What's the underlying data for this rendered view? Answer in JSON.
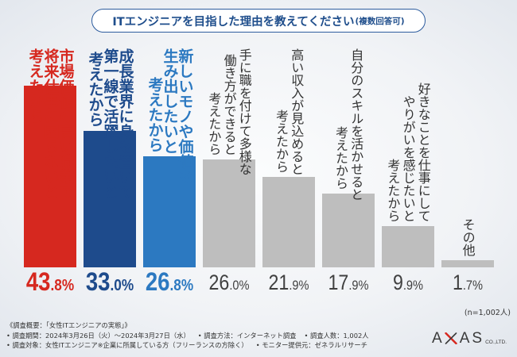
{
  "chart_data": {
    "type": "bar",
    "title": "ITエンジニアを目指した理由を教えてください",
    "subtitle": "(複数回答可)",
    "categories": [
      "市場価値の高い職業で\n将来仕事に困らないと\n考えたから",
      "成長業界に身を置いて\n第一線で活躍したいと\n考えたから",
      "新しいモノや価値を\n生み出したいと\n考えたから",
      "手に職を付けて多様な\n働き方ができると\n考えたから",
      "高い収入が見込めると\n考えたから",
      "自分のスキルを活かせると\n考えたから",
      "好きなことを仕事にして\nやりがいを感じたいと\n考えたから",
      "その他"
    ],
    "values": [
      43.8,
      33.0,
      26.8,
      26.0,
      21.9,
      17.9,
      9.9,
      1.7
    ],
    "data_labels": [
      "43.8%",
      "33.0%",
      "26.8%",
      "26.0%",
      "21.9%",
      "17.9%",
      "9.9%",
      "1.7%"
    ],
    "highlighted": [
      true,
      true,
      true,
      false,
      false,
      false,
      false,
      false
    ],
    "bar_colors": [
      "#d6281f",
      "#1e4b8c",
      "#2c79c1",
      "#bebebe",
      "#bebebe",
      "#bebebe",
      "#bebebe",
      "#bebebe"
    ],
    "label_colors": [
      "#ffffff",
      "#ffffff",
      "#ffffff",
      "#333333",
      "#333333",
      "#333333",
      "#333333",
      "#333333"
    ],
    "value_colors": [
      "#d6281f",
      "#1e4b8c",
      "#2c79c1",
      "#404040",
      "#404040",
      "#404040",
      "#404040",
      "#404040"
    ],
    "ylim": [
      0,
      50
    ],
    "grid": false,
    "sample_note": "(n=1,002人)"
  },
  "survey": {
    "heading": "《調査概要：「女性ITエンジニアの実態」》",
    "row1": [
      "• 調査期間：2024年3月26日（火）～2024年3月27日（水）",
      "• 調査方法：インターネット調査",
      "• 調査人数：1,002人"
    ],
    "row2": [
      "• 調査対象：女性ITエンジニア※企業に所属している方（フリーランスの方除く）",
      "• モニター提供元：ゼネラルリサーチ"
    ]
  },
  "logo": {
    "name": "AXAS",
    "suffix": "CO.,LTD."
  }
}
